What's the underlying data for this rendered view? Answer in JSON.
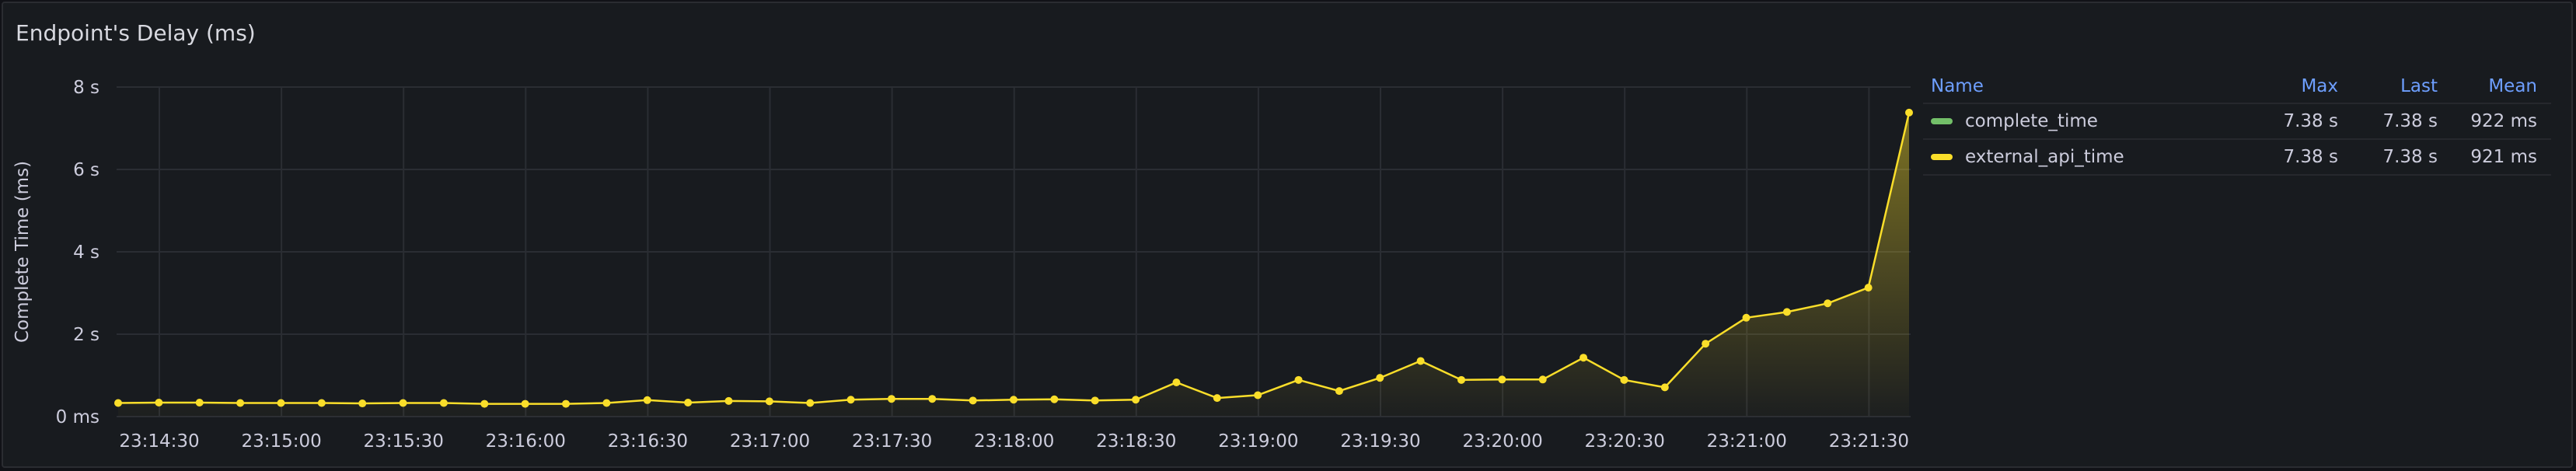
{
  "panel": {
    "title": "Endpoint's Delay (ms)"
  },
  "legend": {
    "headers": {
      "name": "Name",
      "max": "Max",
      "last": "Last",
      "mean": "Mean"
    },
    "rows": [
      {
        "name": "complete_time",
        "color": "#73bf69",
        "max": "7.38 s",
        "last": "7.38 s",
        "mean": "922 ms"
      },
      {
        "name": "external_api_time",
        "color": "#fade2a",
        "max": "7.38 s",
        "last": "7.38 s",
        "mean": "921 ms"
      }
    ]
  },
  "chart_data": {
    "type": "area",
    "title": "Endpoint's Delay (ms)",
    "ylabel": "Complete Time (ms)",
    "xlabel": "",
    "ylim": [
      0,
      8
    ],
    "y_unit": "s",
    "y_ticks": [
      {
        "value": 0,
        "label": "0 ms"
      },
      {
        "value": 2,
        "label": "2 s"
      },
      {
        "value": 4,
        "label": "4 s"
      },
      {
        "value": 6,
        "label": "6 s"
      },
      {
        "value": 8,
        "label": "8 s"
      }
    ],
    "x_ticks": [
      "23:14:30",
      "23:15:00",
      "23:15:30",
      "23:16:00",
      "23:16:30",
      "23:17:00",
      "23:17:30",
      "23:18:00",
      "23:18:30",
      "23:19:00",
      "23:19:30",
      "23:20:00",
      "23:20:30",
      "23:21:00",
      "23:21:30"
    ],
    "grid": true,
    "legend_placement": "right",
    "series": [
      {
        "name": "external_api_time",
        "color": "#fade2a",
        "values": [
          0.33,
          0.34,
          0.34,
          0.33,
          0.33,
          0.33,
          0.32,
          0.33,
          0.33,
          0.31,
          0.31,
          0.31,
          0.33,
          0.4,
          0.34,
          0.38,
          0.37,
          0.33,
          0.41,
          0.43,
          0.43,
          0.39,
          0.41,
          0.42,
          0.39,
          0.41,
          0.83,
          0.45,
          0.52,
          0.89,
          0.62,
          0.94,
          1.35,
          0.89,
          0.9,
          0.9,
          1.43,
          0.89,
          0.71,
          1.77,
          2.4,
          2.54,
          2.75,
          3.13,
          7.38
        ]
      }
    ]
  }
}
